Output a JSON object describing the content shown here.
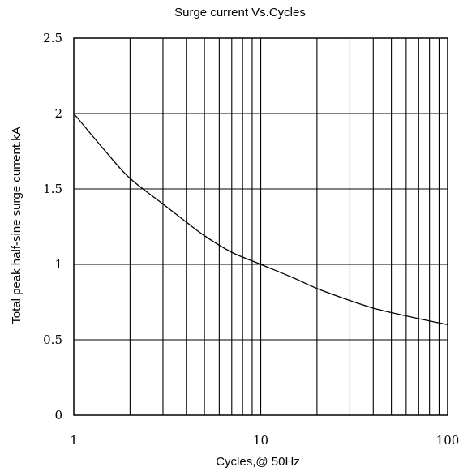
{
  "chart_data": {
    "type": "line",
    "title": "Surge current Vs.Cycles",
    "xlabel": "Cycles,@ 50Hz",
    "ylabel": "Total peak half-sine surge current.kA",
    "x_scale": "log",
    "xlim": [
      1,
      100
    ],
    "ylim": [
      0,
      2.5
    ],
    "grid": true,
    "x_ticks": [
      {
        "value": 1,
        "label": "1"
      },
      {
        "value": 10,
        "label": "10"
      },
      {
        "value": 100,
        "label": "100"
      }
    ],
    "y_ticks": [
      {
        "value": 0,
        "label": "0"
      },
      {
        "value": 0.5,
        "label": "0.5"
      },
      {
        "value": 1,
        "label": "1"
      },
      {
        "value": 1.5,
        "label": "1.5"
      },
      {
        "value": 2,
        "label": "2"
      },
      {
        "value": 2.5,
        "label": "2.5"
      }
    ],
    "series": [
      {
        "x": [
          1,
          1.5,
          2,
          3,
          4,
          5,
          7,
          10,
          15,
          20,
          30,
          40,
          50,
          70,
          100
        ],
        "y": [
          2.0,
          1.74,
          1.57,
          1.4,
          1.28,
          1.19,
          1.08,
          1.0,
          0.91,
          0.84,
          0.76,
          0.71,
          0.68,
          0.64,
          0.6
        ]
      }
    ]
  }
}
